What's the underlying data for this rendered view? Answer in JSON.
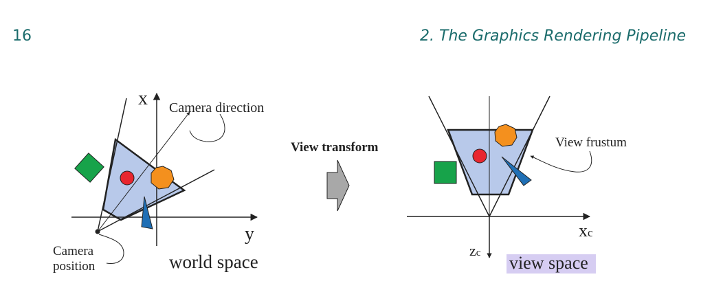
{
  "header": {
    "page_number": "16",
    "running_title": "2. The Graphics Rendering Pipeline"
  },
  "figure": {
    "world": {
      "axis_x": "x",
      "axis_y": "y",
      "camera_direction": "Camera direction",
      "camera_position_line1": "Camera",
      "camera_position_line2": "position",
      "space_label": "world space"
    },
    "transform_label": "View transform",
    "view": {
      "axis_xc_main": "x",
      "axis_xc_sub": "c",
      "axis_zc_main": "z",
      "axis_zc_sub": "c",
      "frustum_label": "View frustum",
      "space_label": "view space"
    },
    "colors": {
      "frustum_fill": "#b8c9ea",
      "circle": "#e8262f",
      "heptagon": "#f4901e",
      "square": "#17a34a",
      "cone": "#1f6fb5",
      "arrow_fill": "#a8a8a8",
      "highlight": "#d6cdf2",
      "heading": "#1a6b6b"
    }
  }
}
